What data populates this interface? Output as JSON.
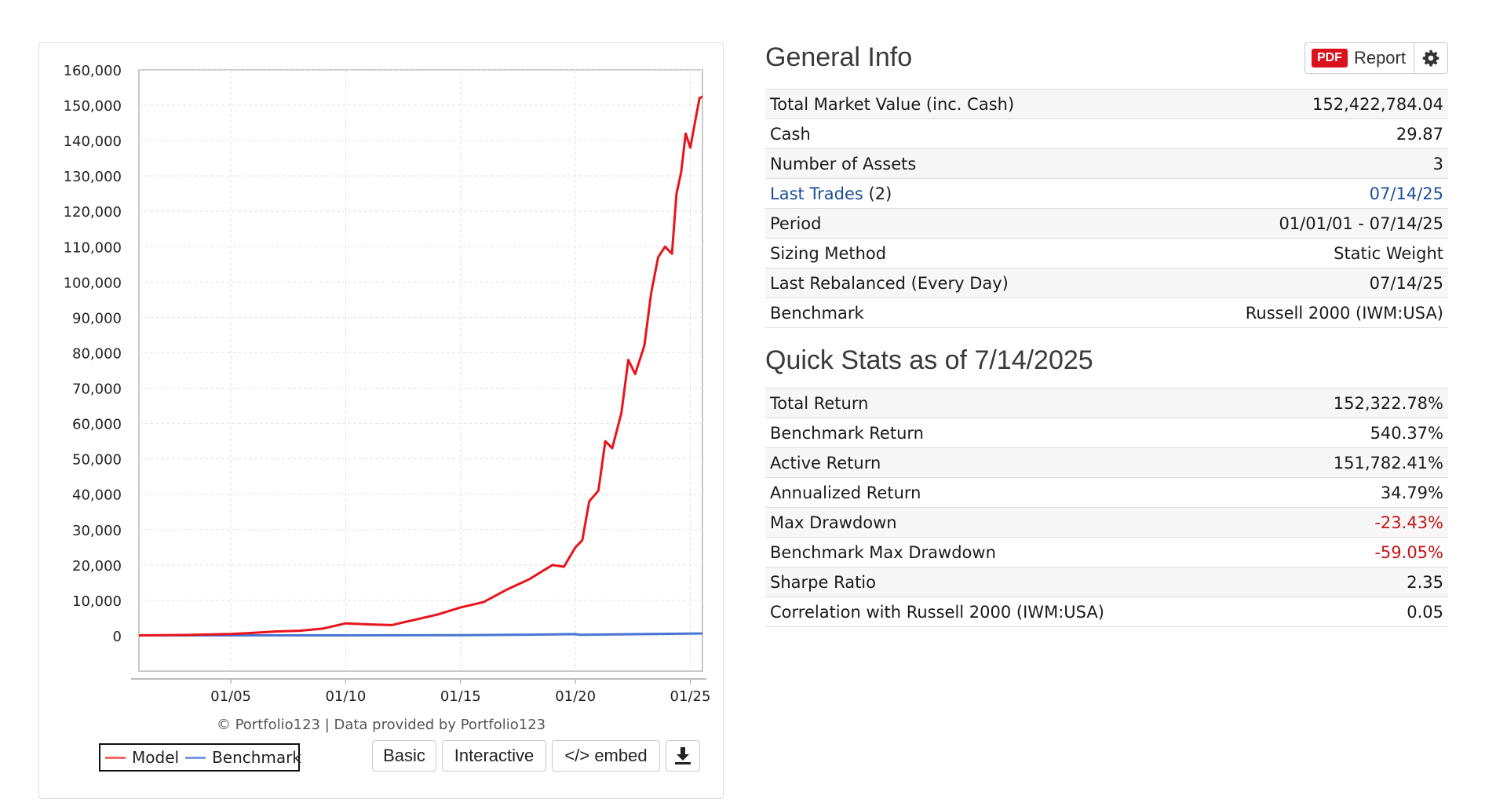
{
  "chart_data": {
    "type": "line",
    "ylim": [
      -10000,
      160000
    ],
    "y_ticks": [
      "160,000",
      "150,000",
      "140,000",
      "130,000",
      "120,000",
      "110,000",
      "100,000",
      "90,000",
      "80,000",
      "70,000",
      "60,000",
      "50,000",
      "40,000",
      "30,000",
      "20,000",
      "10,000",
      "0"
    ],
    "y_tick_values": [
      160000,
      150000,
      140000,
      130000,
      120000,
      110000,
      100000,
      90000,
      80000,
      70000,
      60000,
      50000,
      40000,
      30000,
      20000,
      10000,
      0
    ],
    "x_ticks": [
      "01/05",
      "01/10",
      "01/15",
      "01/20",
      "01/25"
    ],
    "x_tick_years": [
      2005,
      2010,
      2015,
      2020,
      2025
    ],
    "xlim": [
      2001.0,
      2025.53
    ],
    "grid": true,
    "series": [
      {
        "name": "Model",
        "color": "#e8141c",
        "x": [
          2001.0,
          2002.0,
          2003.0,
          2004.0,
          2005.0,
          2006.0,
          2007.0,
          2008.0,
          2009.0,
          2010.0,
          2011.0,
          2012.0,
          2013.0,
          2014.0,
          2015.0,
          2016.0,
          2017.0,
          2017.5,
          2018.0,
          2018.5,
          2019.0,
          2019.5,
          2020.0,
          2020.3,
          2020.6,
          2021.0,
          2021.3,
          2021.6,
          2022.0,
          2022.3,
          2022.6,
          2023.0,
          2023.3,
          2023.6,
          2023.9,
          2024.2,
          2024.4,
          2024.6,
          2024.8,
          2025.0,
          2025.2,
          2025.4,
          2025.53
        ],
        "y": [
          100,
          150,
          200,
          350,
          500,
          800,
          1200,
          1400,
          2000,
          3500,
          3200,
          3000,
          4500,
          6000,
          8000,
          9500,
          13000,
          14500,
          16000,
          18000,
          20000,
          19500,
          25000,
          27000,
          38000,
          41000,
          55000,
          53000,
          63000,
          78000,
          74000,
          82000,
          97000,
          107000,
          110000,
          108000,
          125000,
          131000,
          142000,
          138000,
          145000,
          152000,
          152400
        ]
      },
      {
        "name": "Benchmark",
        "color": "#4a74d4",
        "x": [
          2001.0,
          2005.0,
          2010.0,
          2015.0,
          2018.0,
          2020.0,
          2020.2,
          2022.0,
          2025.53
        ],
        "y": [
          100,
          100,
          100,
          150,
          300,
          450,
          250,
          400,
          640
        ]
      }
    ]
  },
  "chart_credit": "© Portfolio123 | Data provided by Portfolio123",
  "buttons": {
    "basic": "Basic",
    "interactive": "Interactive",
    "embed": "</> embed",
    "download_icon": "download-icon"
  },
  "general_info": {
    "title": "General Info",
    "pdf_badge": "PDF",
    "report_label": "Report",
    "settings_icon": "gear-icon",
    "rows": [
      {
        "label": "Total Market Value (inc. Cash)",
        "value": "152,422,784.04"
      },
      {
        "label": "Cash",
        "value": "29.87"
      },
      {
        "label": "Number of Assets",
        "value": "3"
      },
      {
        "label": "Last Trades",
        "label_suffix": "(2)",
        "value": "07/14/25"
      },
      {
        "label": "Period",
        "value": "01/01/01 - 07/14/25"
      },
      {
        "label": "Sizing Method",
        "value": "Static Weight"
      },
      {
        "label": "Last Rebalanced (Every Day)",
        "value": "07/14/25"
      },
      {
        "label": "Benchmark",
        "value": "Russell 2000 (IWM:USA)"
      }
    ]
  },
  "quick_stats": {
    "title": "Quick Stats as of 7/14/2025",
    "rows": [
      {
        "label": "Total Return",
        "value": "152,322.78%"
      },
      {
        "label": "Benchmark Return",
        "value": "540.37%"
      },
      {
        "label": "Active Return",
        "value": "151,782.41%"
      },
      {
        "label": "Annualized Return",
        "value": "34.79%"
      },
      {
        "label": "Max Drawdown",
        "value": "-23.43%"
      },
      {
        "label": "Benchmark Max Drawdown",
        "value": "-59.05%"
      },
      {
        "label": "Sharpe Ratio",
        "value": "2.35"
      },
      {
        "label": "Correlation with Russell 2000 (IWM:USA)",
        "value": "0.05"
      }
    ]
  },
  "colors": {
    "link": "#1f4f99",
    "negative": "#c81414",
    "pdf_badge": "#d9131e"
  }
}
